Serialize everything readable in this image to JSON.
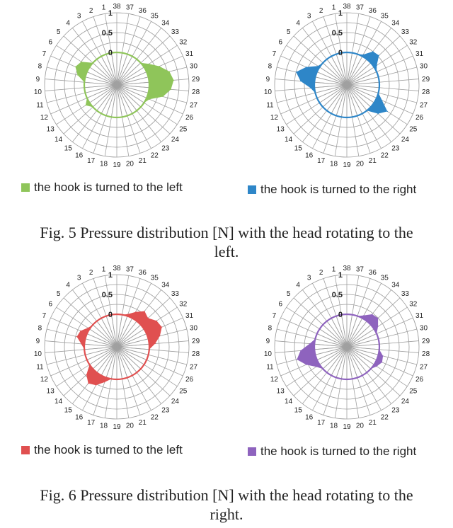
{
  "figures": [
    {
      "caption": "Fig. 5 Pressure distribution [N] with the head rotating to the left."
    },
    {
      "caption": "Fig. 6 Pressure distribution [N] with the head rotating to the right."
    }
  ],
  "chart_data": [
    {
      "type": "radar",
      "categories": [
        "1",
        "2",
        "3",
        "4",
        "5",
        "6",
        "7",
        "8",
        "9",
        "10",
        "11",
        "12",
        "13",
        "14",
        "15",
        "16",
        "17",
        "18",
        "19",
        "20",
        "21",
        "22",
        "23",
        "24",
        "25",
        "26",
        "27",
        "28",
        "29",
        "30",
        "31",
        "32",
        "33",
        "34",
        "35",
        "36",
        "37",
        "38"
      ],
      "rlim": [
        0,
        1
      ],
      "radial_tick_labels": [
        "0",
        "0.5",
        "1"
      ],
      "series": [
        {
          "name": "the hook is turned to the left",
          "color": "#8fc55a",
          "values": [
            0,
            0,
            0,
            0,
            0,
            0.25,
            0.32,
            0.2,
            0,
            0,
            0,
            0,
            0.12,
            0,
            0,
            0,
            0,
            0,
            0,
            0,
            0,
            0,
            0,
            0,
            0,
            0.08,
            0.38,
            0.55,
            0.62,
            0.55,
            0.35,
            0.15,
            0,
            0,
            0,
            0,
            0,
            0
          ]
        }
      ],
      "legend": "bottom"
    },
    {
      "type": "radar",
      "categories": [
        "1",
        "2",
        "3",
        "4",
        "5",
        "6",
        "7",
        "8",
        "9",
        "10",
        "11",
        "12",
        "13",
        "14",
        "15",
        "16",
        "17",
        "18",
        "19",
        "20",
        "21",
        "22",
        "23",
        "24",
        "25",
        "26",
        "27",
        "28",
        "29",
        "30",
        "31",
        "32",
        "33",
        "34",
        "35",
        "36",
        "37",
        "38"
      ],
      "rlim": [
        0,
        1
      ],
      "radial_tick_labels": [
        "0",
        "0.5",
        "1"
      ],
      "series": [
        {
          "name": "the hook is turned to the right",
          "color": "#2e86c8",
          "values": [
            0,
            0,
            0,
            0,
            0,
            0.05,
            0.3,
            0.5,
            0.35,
            0.1,
            0,
            0,
            0,
            0,
            0,
            0,
            0,
            0,
            0,
            0,
            0,
            0,
            0,
            0.25,
            0.4,
            0.15,
            0,
            0,
            0,
            0,
            0,
            0.08,
            0.28,
            0.25,
            0.05,
            0,
            0,
            0
          ]
        }
      ],
      "legend": "bottom"
    },
    {
      "type": "radar",
      "categories": [
        "1",
        "2",
        "3",
        "4",
        "5",
        "6",
        "7",
        "8",
        "9",
        "10",
        "11",
        "12",
        "13",
        "14",
        "15",
        "16",
        "17",
        "18",
        "19",
        "20",
        "21",
        "22",
        "23",
        "24",
        "25",
        "26",
        "27",
        "28",
        "29",
        "30",
        "31",
        "32",
        "33",
        "34",
        "35",
        "36",
        "37",
        "38"
      ],
      "rlim": [
        0,
        1
      ],
      "radial_tick_labels": [
        "0",
        "0.5",
        "1"
      ],
      "series": [
        {
          "name": "the hook is turned to the left",
          "color": "#e05050",
          "values": [
            0,
            0,
            0,
            0,
            0,
            0.05,
            0.18,
            0.22,
            0.08,
            0,
            0,
            0,
            0,
            0.22,
            0.35,
            0.28,
            0.12,
            0,
            0,
            0,
            0,
            0,
            0,
            0,
            0,
            0,
            0,
            0,
            0.15,
            0.3,
            0.42,
            0.38,
            0.25,
            0.32,
            0.18,
            0.05,
            0,
            0
          ]
        }
      ],
      "legend": "bottom"
    },
    {
      "type": "radar",
      "categories": [
        "1",
        "2",
        "3",
        "4",
        "5",
        "6",
        "7",
        "8",
        "9",
        "10",
        "11",
        "12",
        "13",
        "14",
        "15",
        "16",
        "17",
        "18",
        "19",
        "20",
        "21",
        "22",
        "23",
        "24",
        "25",
        "26",
        "27",
        "28",
        "29",
        "30",
        "31",
        "32",
        "33",
        "34",
        "35",
        "36",
        "37",
        "38"
      ],
      "rlim": [
        0,
        1
      ],
      "radial_tick_labels": [
        "0",
        "0.5",
        "1"
      ],
      "series": [
        {
          "name": "the hook is turned to the right",
          "color": "#8e63be",
          "values": [
            0,
            0,
            0,
            0,
            0,
            0,
            0,
            0,
            0.12,
            0.35,
            0.48,
            0.3,
            0.1,
            0,
            0,
            0,
            0,
            0,
            0,
            0,
            0,
            0,
            0,
            0,
            0.08,
            0.15,
            0.12,
            0,
            0,
            0,
            0,
            0.12,
            0.25,
            0.22,
            0.08,
            0,
            0,
            0
          ]
        }
      ],
      "legend": "bottom"
    }
  ]
}
